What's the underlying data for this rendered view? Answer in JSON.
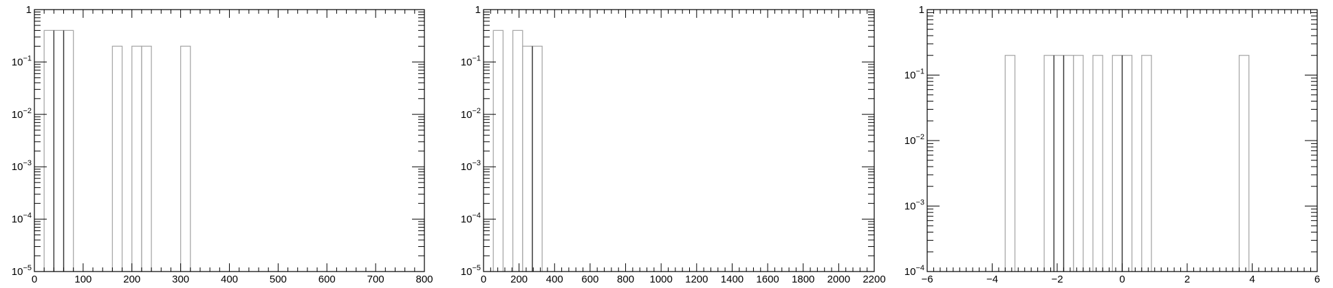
{
  "chart_data": [
    {
      "type": "histogram",
      "log_y": true,
      "xlim": [
        0,
        800
      ],
      "ylim": [
        1e-05,
        1
      ],
      "x_ticks": [
        "0",
        "100",
        "200",
        "300",
        "400",
        "500",
        "600",
        "700",
        "800"
      ],
      "y_ticks": [
        {
          "base": "10",
          "exp": "-5"
        },
        {
          "base": "10",
          "exp": "-4"
        },
        {
          "base": "10",
          "exp": "-3"
        },
        {
          "base": "10",
          "exp": "-2"
        },
        {
          "base": "10",
          "exp": "-1"
        },
        {
          "base": "1",
          "exp": ""
        }
      ],
      "bins": [
        {
          "x0": 20,
          "x1": 40,
          "y": 0.4
        },
        {
          "x0": 40,
          "x1": 60,
          "y": 0.4
        },
        {
          "x0": 60,
          "x1": 80,
          "y": 0.4
        },
        {
          "x0": 160,
          "x1": 180,
          "y": 0.2
        },
        {
          "x0": 200,
          "x1": 220,
          "y": 0.2
        },
        {
          "x0": 220,
          "x1": 240,
          "y": 0.2
        },
        {
          "x0": 300,
          "x1": 320,
          "y": 0.2
        }
      ],
      "dark_edges": [
        40,
        60
      ]
    },
    {
      "type": "histogram",
      "log_y": true,
      "xlim": [
        0,
        2200
      ],
      "ylim": [
        1e-05,
        1
      ],
      "x_ticks": [
        "0",
        "200",
        "400",
        "600",
        "800",
        "1000",
        "1200",
        "1400",
        "1600",
        "1800",
        "2000",
        "2200"
      ],
      "y_ticks": [
        {
          "base": "10",
          "exp": "-5"
        },
        {
          "base": "10",
          "exp": "-4"
        },
        {
          "base": "10",
          "exp": "-3"
        },
        {
          "base": "10",
          "exp": "-2"
        },
        {
          "base": "10",
          "exp": "-1"
        },
        {
          "base": "1",
          "exp": ""
        }
      ],
      "bins": [
        {
          "x0": 55,
          "x1": 110,
          "y": 0.4
        },
        {
          "x0": 165,
          "x1": 220,
          "y": 0.4
        },
        {
          "x0": 220,
          "x1": 275,
          "y": 0.2
        },
        {
          "x0": 275,
          "x1": 330,
          "y": 0.2
        }
      ],
      "dark_edges": [
        275
      ]
    },
    {
      "type": "histogram",
      "log_y": true,
      "xlim": [
        -6,
        6
      ],
      "ylim": [
        0.0001,
        1
      ],
      "x_ticks": [
        "-6",
        "-4",
        "-2",
        "0",
        "2",
        "4",
        "6"
      ],
      "y_ticks": [
        {
          "base": "10",
          "exp": "-4"
        },
        {
          "base": "10",
          "exp": "-3"
        },
        {
          "base": "10",
          "exp": "-2"
        },
        {
          "base": "10",
          "exp": "-1"
        },
        {
          "base": "1",
          "exp": ""
        }
      ],
      "bins": [
        {
          "x0": -3.6,
          "x1": -3.3,
          "y": 0.2
        },
        {
          "x0": -2.4,
          "x1": -2.1,
          "y": 0.2
        },
        {
          "x0": -2.1,
          "x1": -1.8,
          "y": 0.2
        },
        {
          "x0": -1.8,
          "x1": -1.5,
          "y": 0.2
        },
        {
          "x0": -1.5,
          "x1": -1.2,
          "y": 0.2
        },
        {
          "x0": -0.9,
          "x1": -0.6,
          "y": 0.2
        },
        {
          "x0": -0.3,
          "x1": 0.0,
          "y": 0.2
        },
        {
          "x0": 0.0,
          "x1": 0.3,
          "y": 0.2
        },
        {
          "x0": 0.6,
          "x1": 0.9,
          "y": 0.2
        },
        {
          "x0": 3.6,
          "x1": 3.9,
          "y": 0.2
        }
      ],
      "dark_edges": [
        -2.1,
        -1.8,
        0.0
      ]
    }
  ]
}
